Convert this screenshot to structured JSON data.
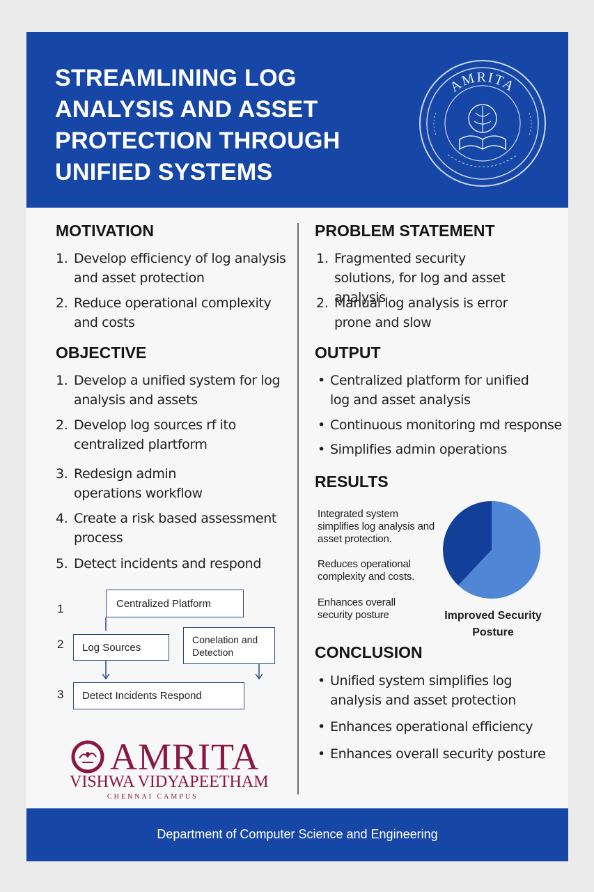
{
  "header": {
    "title": "STREAMLINING LOG ANALYSIS AND ASSET PROTECTION THROUGH UNIFIED SYSTEMS",
    "seal": {
      "top_text": "AMRITA",
      "icon": "university-seal-icon"
    }
  },
  "motivation": {
    "title": "MOTIVATION",
    "items": [
      {
        "num": "1.",
        "text": "Develop efficiency of log analysis and asset protection"
      },
      {
        "num": "2.",
        "text": "Reduce operational complexity and costs"
      }
    ]
  },
  "objective": {
    "title": "OBJECTIVE",
    "items": [
      {
        "num": "1.",
        "text": "Develop a unified system for log analysis and assets"
      },
      {
        "num": "2.",
        "text": "Develop log sources rf ito centralized plartform"
      },
      {
        "num": "3.",
        "text": "Redesign admin operations workflow"
      },
      {
        "num": "4.",
        "text": "Create a risk based assessment process"
      },
      {
        "num": "5.",
        "text": "Detect incidents and respond"
      }
    ]
  },
  "flow": {
    "rows": [
      "1",
      "2",
      "3"
    ],
    "boxes": {
      "centralized": "Centralized Platform",
      "log_sources": "Log Sources",
      "correlation": "Conelation and Detection",
      "detect": "Detect Incidents Respond"
    }
  },
  "logo": {
    "word": "AMRITA",
    "sub": "VISHWA VIDYAPEETHAM",
    "campus": "CHENNAI CAMPUS"
  },
  "problem": {
    "title": "PROBLEM STATEMENT",
    "items": [
      {
        "num": "1.",
        "text": "Fragmented security solutions, for log and asset analysis"
      },
      {
        "num": "2.",
        "text": "Manual log analysis is error prone and slow"
      }
    ]
  },
  "output": {
    "title": "OUTPUT",
    "bullet": "•",
    "items": [
      "Centralized platform for unified log and asset analysis",
      "Continuous monitoring md response",
      "Simplifies admin operations"
    ]
  },
  "results": {
    "title": "RESULTS",
    "texts": [
      "Integrated system simplifies log analysis and asset protection.",
      "Reduces operational complexity and costs.",
      "Enhances overall security posture"
    ],
    "pie_label": "Improved Security Posture"
  },
  "chart_data": {
    "type": "pie",
    "slices": [
      {
        "value": 62,
        "color": "#4f87d6"
      },
      {
        "value": 38,
        "color": "#123f98"
      }
    ]
  },
  "conclusion": {
    "title": "CONCLUSION",
    "bullet": "•",
    "items": [
      "Unified system simplifies log analysis and asset protection",
      "Enhances operational efficiency",
      "Enhances overall security posture"
    ]
  },
  "footer": {
    "text": "Department of Computer Science and Engineering"
  },
  "colors": {
    "brand_blue": "#1747a6",
    "logo_maroon": "#8a1845"
  }
}
